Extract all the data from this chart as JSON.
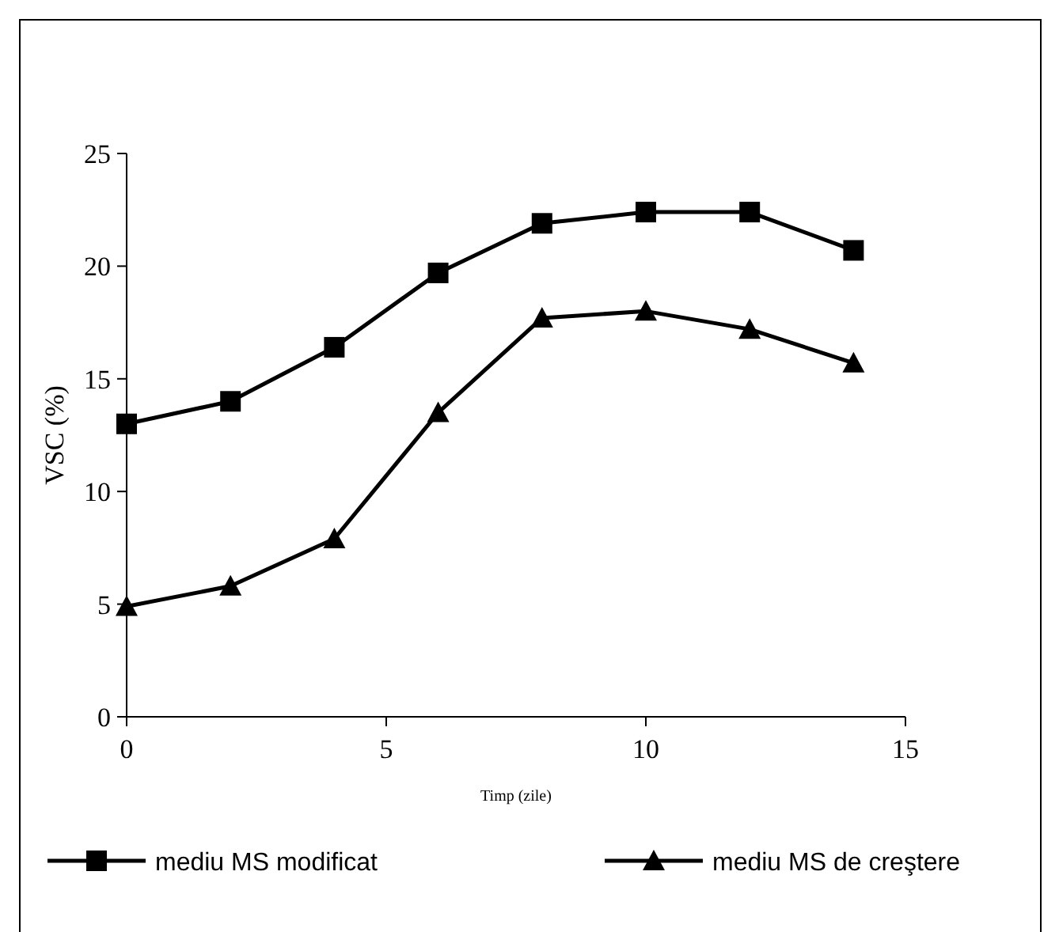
{
  "chart_data": {
    "type": "line",
    "xlabel": "Timp (zile)",
    "ylabel": "VSC (%)",
    "xlim": [
      0,
      15
    ],
    "ylim": [
      0,
      25
    ],
    "xticks": [
      0,
      5,
      10,
      15
    ],
    "yticks": [
      0,
      5,
      10,
      15,
      20,
      25
    ],
    "grid": false,
    "legend": "bottom",
    "line_style": "solid",
    "series": [
      {
        "name": "mediu MS modificat",
        "color": "#000000",
        "marker": "square",
        "x": [
          0,
          2,
          4,
          6,
          8,
          10,
          12,
          14
        ],
        "values": [
          13.0,
          14.0,
          16.4,
          19.7,
          21.9,
          22.4,
          22.4,
          20.7
        ]
      },
      {
        "name": "mediu MS de creştere",
        "color": "#000000",
        "marker": "triangle",
        "x": [
          0,
          2,
          4,
          6,
          8,
          10,
          12,
          14
        ],
        "values": [
          4.9,
          5.8,
          7.9,
          13.5,
          17.7,
          18.0,
          17.2,
          15.7
        ]
      }
    ]
  }
}
